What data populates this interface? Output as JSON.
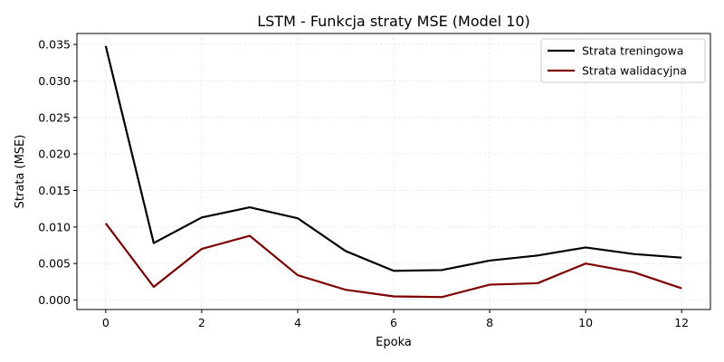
{
  "chart_data": {
    "type": "line",
    "title": "LSTM - Funkcja straty MSE (Model 10)",
    "xlabel": "Epoka",
    "ylabel": "Strata (MSE)",
    "xlim": [
      -0.6,
      12.6
    ],
    "ylim": [
      -0.0013,
      0.0365
    ],
    "xticks": [
      0,
      2,
      4,
      6,
      8,
      10,
      12
    ],
    "xtick_labels": [
      "0",
      "2",
      "4",
      "6",
      "8",
      "10",
      "12"
    ],
    "yticks": [
      0.0,
      0.005,
      0.01,
      0.015,
      0.02,
      0.025,
      0.03,
      0.035
    ],
    "ytick_labels": [
      "0.000",
      "0.005",
      "0.010",
      "0.015",
      "0.020",
      "0.025",
      "0.030",
      "0.035"
    ],
    "grid": true,
    "legend_position": "top-right",
    "x": [
      0,
      1,
      2,
      3,
      4,
      5,
      6,
      7,
      8,
      9,
      10,
      11,
      12
    ],
    "series": [
      {
        "name": "Strata treningowa",
        "color": "#000000",
        "values": [
          0.0348,
          0.0078,
          0.0113,
          0.0127,
          0.0112,
          0.0067,
          0.004,
          0.0041,
          0.0054,
          0.0061,
          0.0072,
          0.0063,
          0.0058
        ]
      },
      {
        "name": "Strata walidacyjna",
        "color": "#7f0000",
        "values": [
          0.0105,
          0.0018,
          0.007,
          0.0088,
          0.0034,
          0.0014,
          0.0005,
          0.0004,
          0.0021,
          0.0023,
          0.005,
          0.0038,
          0.0016
        ]
      }
    ]
  }
}
